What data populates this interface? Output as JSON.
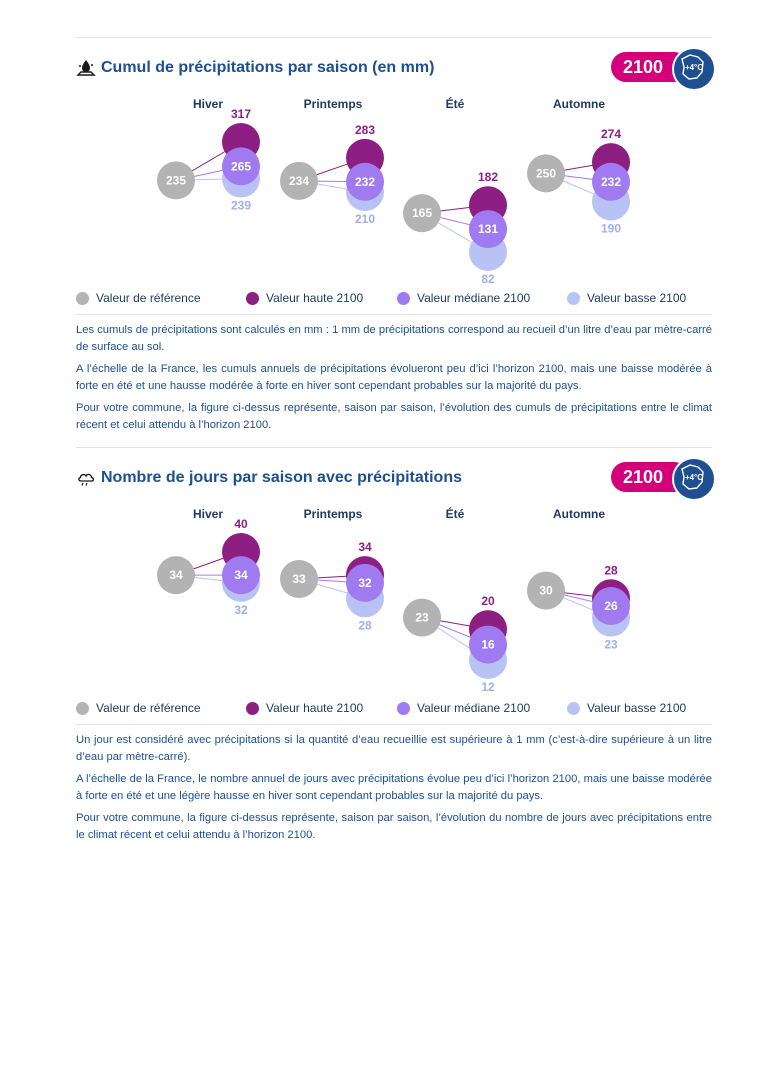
{
  "section1": {
    "title": "Cumul de précipitations par saison (en mm)",
    "icon": "rain-drop-icon",
    "badge_year": "2100",
    "badge_temp": "+4°C",
    "chart_data": {
      "type": "scatter",
      "categories": [
        "Hiver",
        "Printemps",
        "Été",
        "Automne"
      ],
      "series": [
        {
          "name": "Valeur de référence",
          "values": [
            235,
            234,
            165,
            250
          ]
        },
        {
          "name": "Valeur haute 2100",
          "values": [
            317,
            283,
            182,
            274
          ]
        },
        {
          "name": "Valeur médiane 2100",
          "values": [
            265,
            232,
            131,
            232
          ]
        },
        {
          "name": "Valeur basse 2100",
          "values": [
            239,
            210,
            82,
            190
          ]
        }
      ]
    },
    "legend": [
      "Valeur de référence",
      "Valeur haute 2100",
      "Valeur médiane 2100",
      "Valeur basse 2100"
    ],
    "paragraphs": [
      "Les cumuls de précipitations sont calculés en mm : 1 mm de précipitations correspond au recueil d’un litre d’eau par mètre-carré de surface au sol.",
      "A l’échelle de la France, les cumuls annuels de précipitations évolueront peu d’ici l’horizon 2100, mais une baisse modérée à forte en été et une hausse modérée à forte en hiver sont cependant probables sur la majorité du pays.",
      "Pour votre commune, la figure ci-dessus représente, saison par saison, l’évolution des cumuls de précipitations entre le climat récent et celui attendu à l’horizon 2100."
    ]
  },
  "section2": {
    "title": "Nombre de jours par saison avec précipitations",
    "icon": "cloud-rain-icon",
    "badge_year": "2100",
    "badge_temp": "+4°C",
    "chart_data": {
      "type": "scatter",
      "categories": [
        "Hiver",
        "Printemps",
        "Été",
        "Automne"
      ],
      "series": [
        {
          "name": "Valeur de référence",
          "values": [
            34,
            33,
            23,
            30
          ]
        },
        {
          "name": "Valeur haute 2100",
          "values": [
            40,
            34,
            20,
            28
          ]
        },
        {
          "name": "Valeur médiane 2100",
          "values": [
            34,
            32,
            16,
            26
          ]
        },
        {
          "name": "Valeur basse 2100",
          "values": [
            32,
            28,
            12,
            23
          ]
        }
      ]
    },
    "legend": [
      "Valeur de référence",
      "Valeur haute 2100",
      "Valeur médiane 2100",
      "Valeur basse 2100"
    ],
    "paragraphs": [
      "Un jour est considéré avec précipitations si la quantité d’eau recueillie est supérieure à 1 mm (c’est-à-dire supérieure à un litre d’eau par mètre-carré).",
      "A l’échelle de la France, le nombre annuel de jours avec précipitations évolue peu d’ici l’horizon 2100, mais une baisse modérée à forte en été et une légère hausse en hiver sont cependant probables sur la majorité du pays.",
      "Pour votre commune, la figure ci-dessus représente, saison par saison, l’évolution du nombre de jours avec précipitations entre le climat récent et celui attendu à l’horizon 2100."
    ]
  },
  "colors": {
    "reference": "#b3b3b3",
    "haute": "#8e1f82",
    "mediane": "#a07af0",
    "basse": "#b9c2f5",
    "title": "#1d4f91",
    "badge_pink": "#d4007a",
    "badge_blue": "#1d4f91"
  }
}
